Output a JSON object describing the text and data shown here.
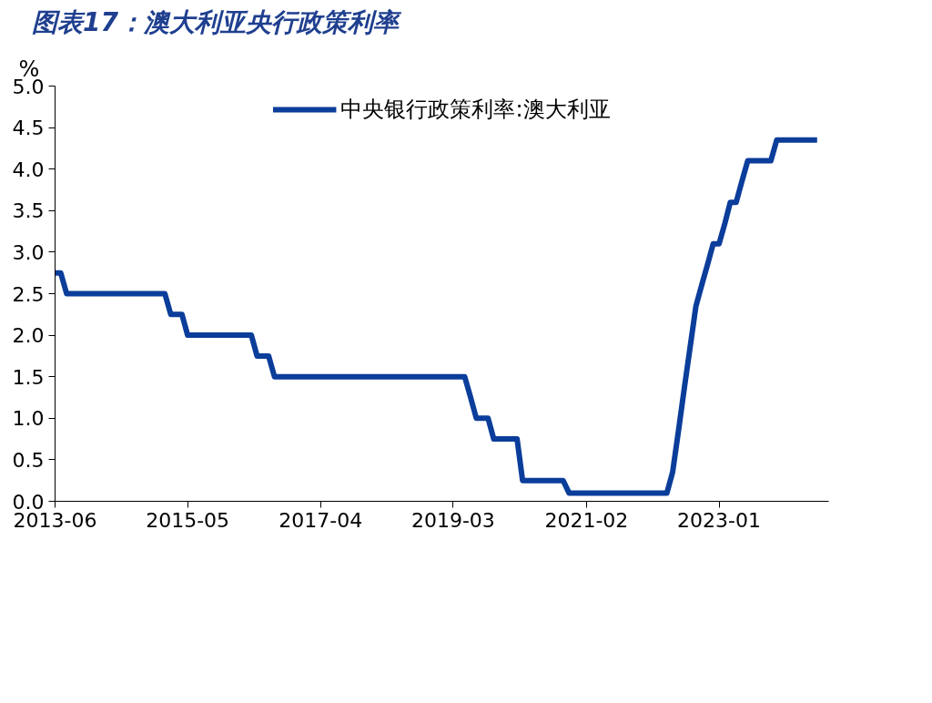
{
  "chart_data": {
    "type": "line",
    "title": "图表17：澳大利亚央行政策利率",
    "ylabel": "%",
    "x": [
      "2013-06",
      "2013-07",
      "2013-08",
      "2015-01",
      "2015-02",
      "2015-04",
      "2015-05",
      "2016-04",
      "2016-05",
      "2016-07",
      "2016-08",
      "2019-05",
      "2019-06",
      "2019-07",
      "2019-09",
      "2019-10",
      "2020-02",
      "2020-03",
      "2020-10",
      "2020-11",
      "2022-04",
      "2022-05",
      "2022-06",
      "2022-07",
      "2022-08",
      "2022-09",
      "2022-10",
      "2022-11",
      "2022-12",
      "2023-01",
      "2023-02",
      "2023-03",
      "2023-04",
      "2023-05",
      "2023-06",
      "2023-10",
      "2023-11",
      "2024-06"
    ],
    "series": [
      {
        "name": "中央银行政策利率:澳大利亚",
        "color": "#0b3d9a",
        "values": [
          2.75,
          2.75,
          2.5,
          2.5,
          2.25,
          2.25,
          2.0,
          2.0,
          1.75,
          1.75,
          1.5,
          1.5,
          1.25,
          1.0,
          1.0,
          0.75,
          0.75,
          0.25,
          0.25,
          0.1,
          0.1,
          0.35,
          0.85,
          1.35,
          1.85,
          2.35,
          2.6,
          2.85,
          3.1,
          3.1,
          3.35,
          3.6,
          3.6,
          3.85,
          4.1,
          4.1,
          4.35,
          4.35
        ]
      }
    ],
    "xlim": [
      "2013-06",
      "2024-08"
    ],
    "xticks": [
      "2013-06",
      "2015-05",
      "2017-04",
      "2019-03",
      "2021-02",
      "2023-01"
    ],
    "ylim": [
      0,
      5
    ],
    "yticks": [
      {
        "value": 0,
        "label": "0.0"
      },
      {
        "value": 0.5,
        "label": "0.5"
      },
      {
        "value": 1,
        "label": "1.0"
      },
      {
        "value": 1.5,
        "label": "1.5"
      },
      {
        "value": 2,
        "label": "2.0"
      },
      {
        "value": 2.5,
        "label": "2.5"
      },
      {
        "value": 3,
        "label": "3.0"
      },
      {
        "value": 3.5,
        "label": "3.5"
      },
      {
        "value": 4,
        "label": "4.0"
      },
      {
        "value": 4.5,
        "label": "4.5"
      },
      {
        "value": 5,
        "label": "5.0"
      }
    ],
    "grid": false,
    "legend": "top",
    "line_style": "solid"
  }
}
